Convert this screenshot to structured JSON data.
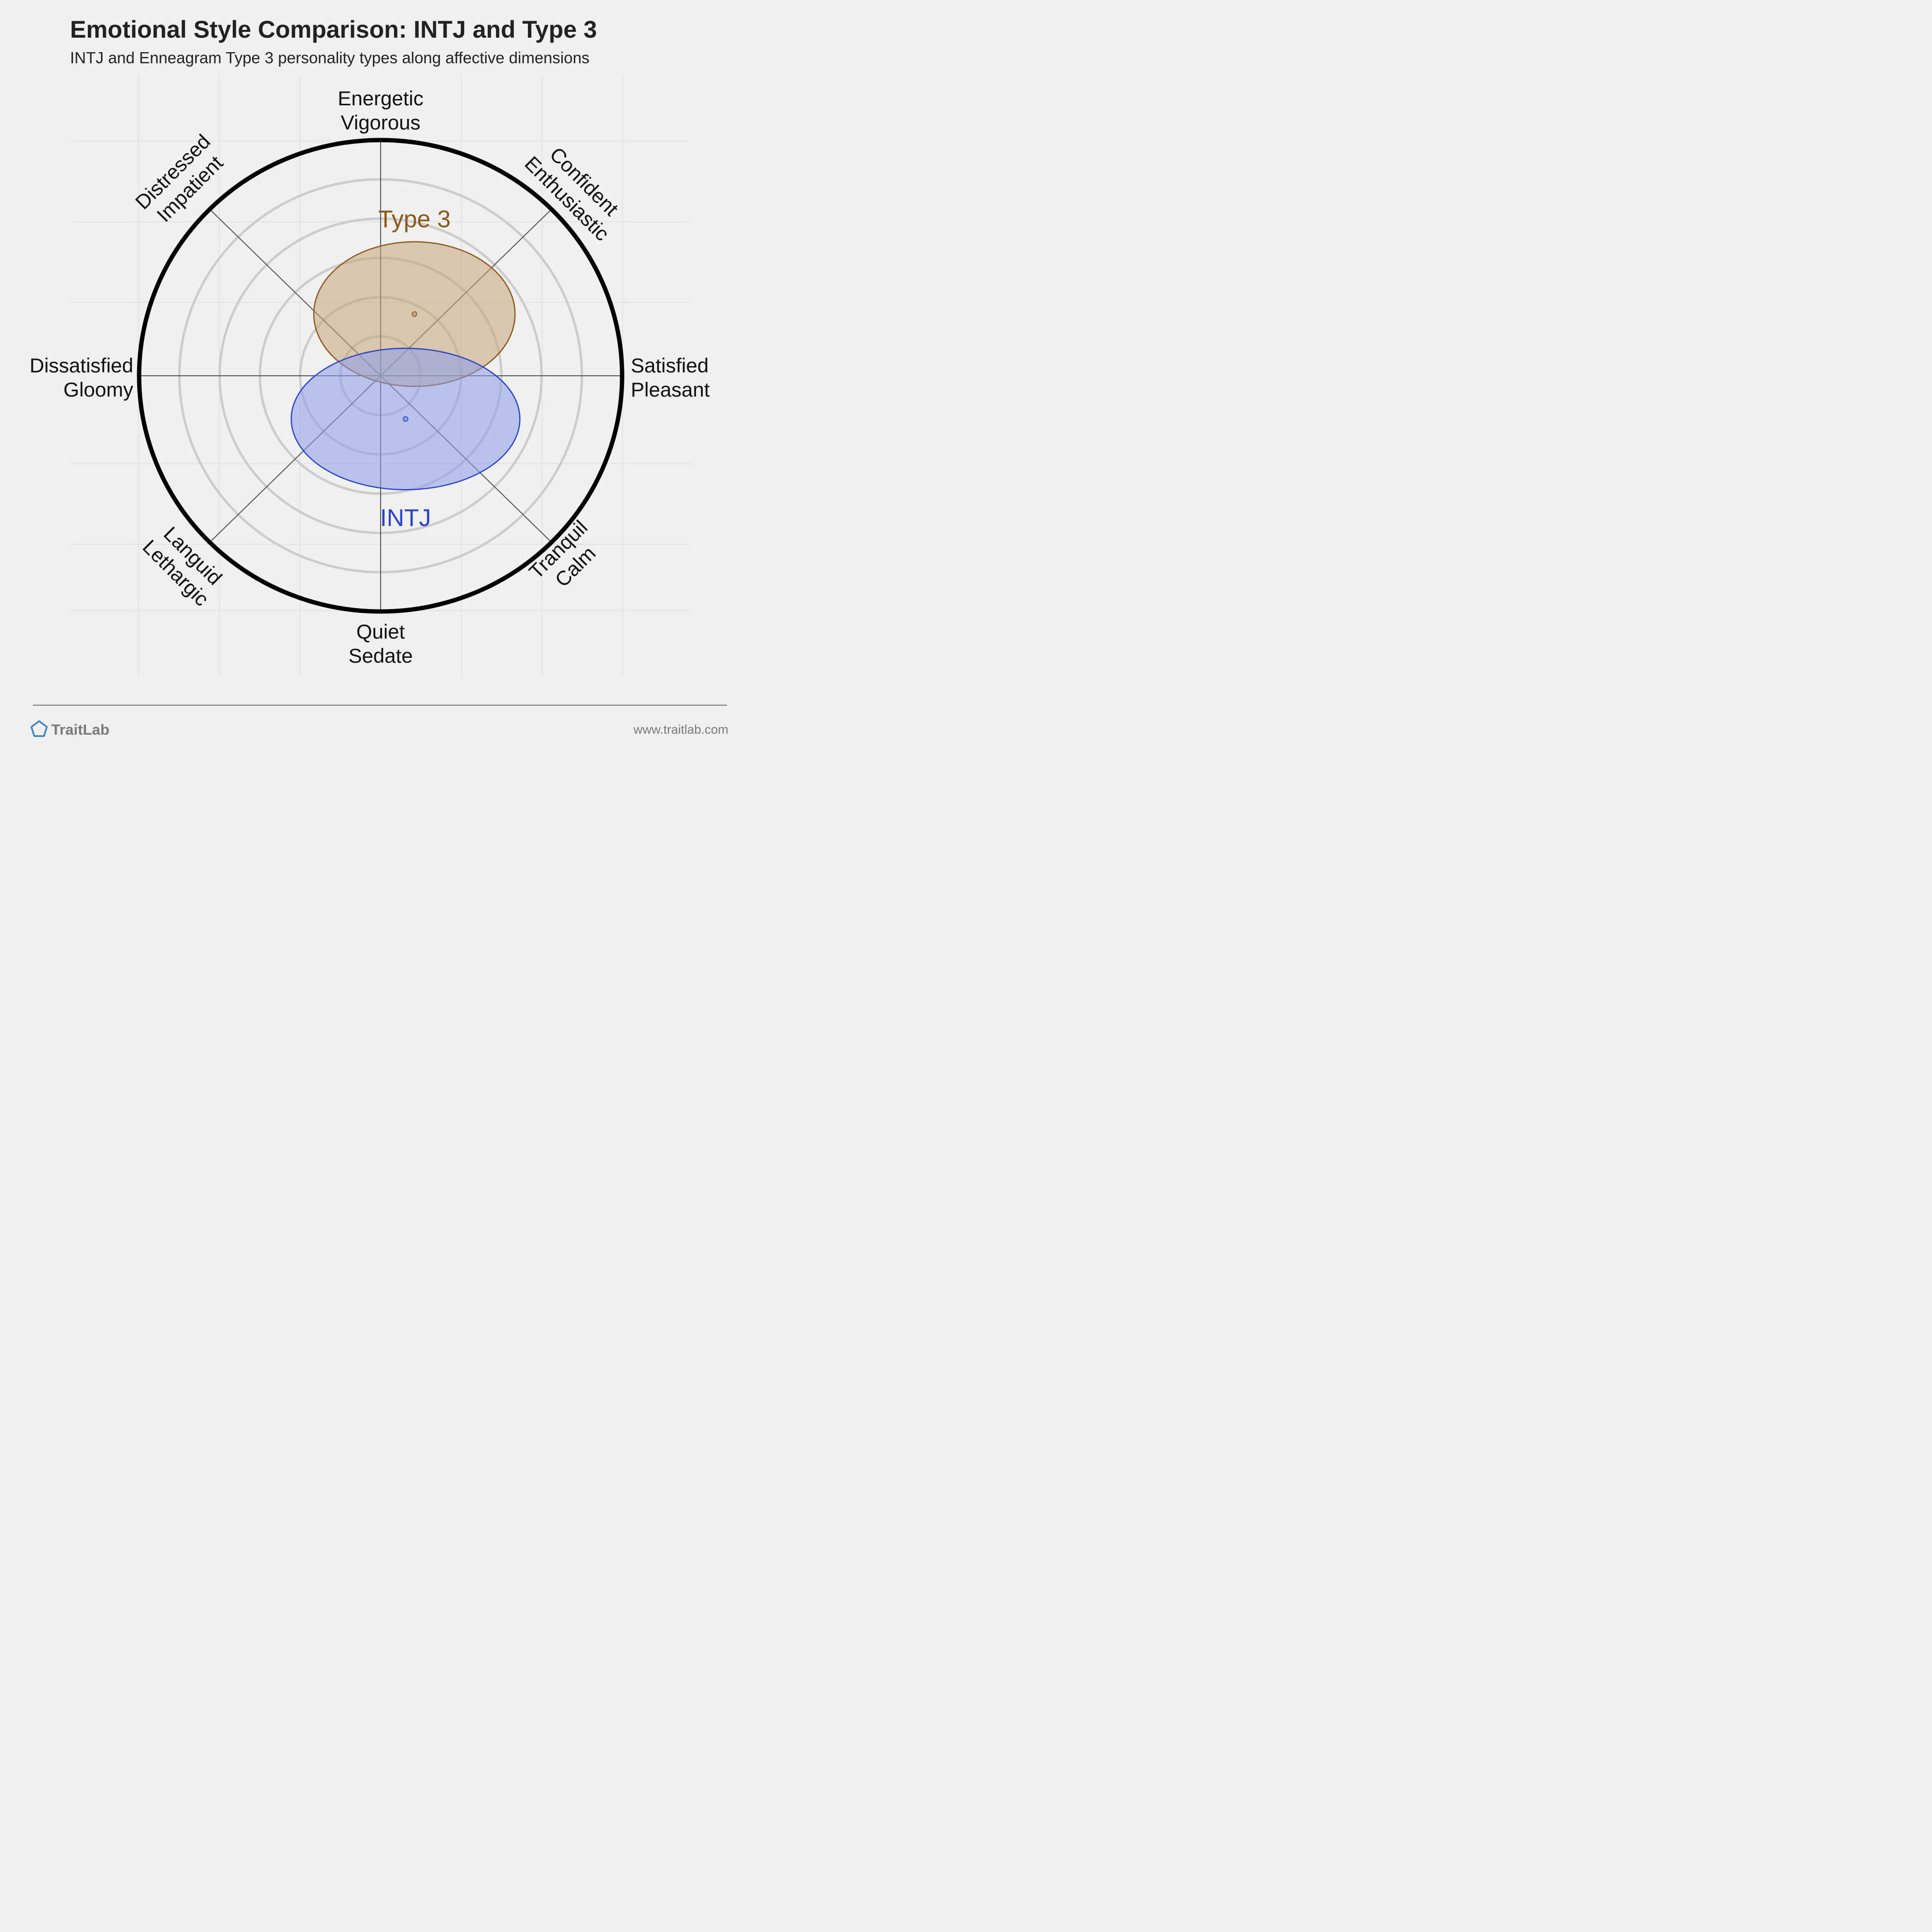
{
  "header": {
    "title": "Emotional Style Comparison: INTJ and Type 3",
    "subtitle": "INTJ and Enneagram Type 3 personality types along affective dimensions"
  },
  "chart_data": {
    "type": "scatter",
    "title": "Emotional Style Comparison: INTJ and Type 3",
    "subtitle": "INTJ and Enneagram Type 3 personality types along affective dimensions",
    "x_axis": {
      "negative": [
        "Dissatisfied",
        "Gloomy"
      ],
      "positive": [
        "Satisfied",
        "Pleasant"
      ]
    },
    "y_axis": {
      "negative": [
        "Quiet",
        "Sedate"
      ],
      "positive": [
        "Energetic",
        "Vigorous"
      ]
    },
    "diagonals": {
      "top_left": [
        "Distressed",
        "Impatient"
      ],
      "top_right": [
        "Confident",
        "Enthusiastic"
      ],
      "bottom_left": [
        "Languid",
        "Lethargic"
      ],
      "bottom_right": [
        "Tranquil",
        "Calm"
      ]
    },
    "range": [
      -6,
      6
    ],
    "rings": 6,
    "grid": true,
    "series": [
      {
        "name": "Type 3",
        "color": "#8b5a1a",
        "fill": "#c8a27a",
        "x": 0.84,
        "y": 1.57,
        "spread_x": 2.5,
        "spread_y": 1.84,
        "label_position": "top"
      },
      {
        "name": "INTJ",
        "color": "#2a44c8",
        "fill": "#8a9ce8",
        "x": 0.62,
        "y": -1.1,
        "spread_x": 2.84,
        "spread_y": 1.8,
        "label_position": "bottom"
      }
    ]
  },
  "footer": {
    "brand": "TraitLab",
    "url": "www.traitlab.com",
    "logo_icon": "pentagon-icon",
    "accent": "#3b82c4"
  }
}
